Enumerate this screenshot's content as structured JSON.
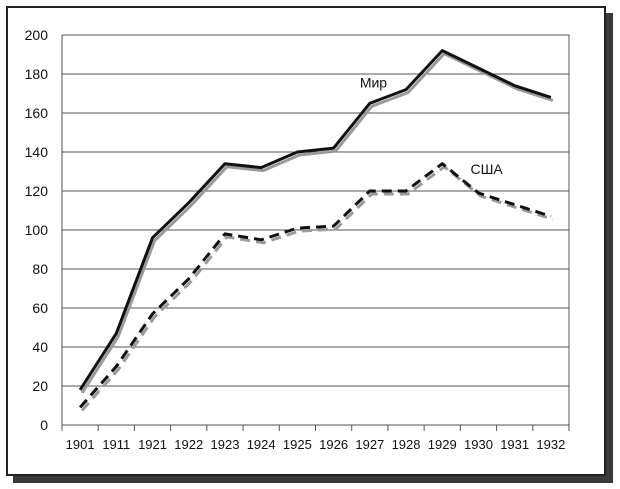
{
  "chart_data": {
    "type": "line",
    "title": "",
    "xlabel": "",
    "ylabel": "",
    "categories": [
      "1901",
      "1911",
      "1921",
      "1922",
      "1923",
      "1924",
      "1925",
      "1926",
      "1927",
      "1928",
      "1929",
      "1930",
      "1931",
      "1932"
    ],
    "ylim": [
      0,
      200
    ],
    "yticks": [
      0,
      20,
      40,
      60,
      80,
      100,
      120,
      140,
      160,
      180,
      200
    ],
    "grid": true,
    "series": [
      {
        "name": "Мир",
        "style": "solid",
        "color": "#111111",
        "values": [
          18,
          47,
          96,
          114,
          134,
          132,
          140,
          142,
          165,
          172,
          192,
          183,
          174,
          168
        ]
      },
      {
        "name": "США",
        "style": "dashed",
        "color": "#111111",
        "values": [
          9,
          30,
          57,
          75,
          98,
          95,
          101,
          102,
          120,
          120,
          134,
          119,
          113,
          107
        ]
      }
    ]
  }
}
